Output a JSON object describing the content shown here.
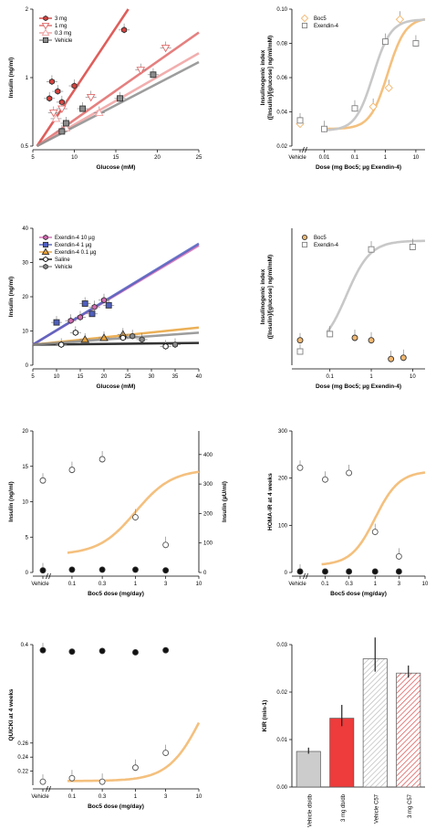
{
  "chart_data": [
    {
      "id": "p1",
      "type": "scatter",
      "xlabel": "Glucose (mM)",
      "ylabel": "Insulin (ng/ml)",
      "xlim": [
        5,
        25
      ],
      "ylim": [
        0.5,
        2
      ],
      "yscale": "log",
      "xticks": [
        "5",
        "10",
        "15",
        "20",
        "25"
      ],
      "yticks": [
        {
          "v": 0.5,
          "t": "0.5"
        },
        {
          "v": 1,
          "t": "1"
        },
        {
          "v": 2,
          "t": "2"
        }
      ],
      "legend": "top-left",
      "series": [
        {
          "name": "3 mg",
          "marker": "hexagon",
          "color": "#d9423e",
          "filled": true,
          "points": [
            {
              "x": 7,
              "y": 0.81
            },
            {
              "x": 7.3,
              "y": 0.96
            },
            {
              "x": 8,
              "y": 0.87
            },
            {
              "x": 8.5,
              "y": 0.78
            },
            {
              "x": 10,
              "y": 0.92
            },
            {
              "x": 16,
              "y": 1.62
            }
          ],
          "line": [
            [
              5.5,
              0.5
            ],
            [
              16.5,
              2
            ]
          ]
        },
        {
          "name": "1 mg",
          "marker": "triangle-down",
          "color": "#e06a6a",
          "filled": false,
          "points": [
            {
              "x": 7.5,
              "y": 0.7
            },
            {
              "x": 8.5,
              "y": 0.73
            },
            {
              "x": 12,
              "y": 0.82
            },
            {
              "x": 18,
              "y": 1.08
            },
            {
              "x": 21,
              "y": 1.35
            }
          ],
          "line": [
            [
              5.5,
              0.5
            ],
            [
              25,
              1.58
            ]
          ]
        },
        {
          "name": "0.3 mg",
          "marker": "triangle-up",
          "color": "#f0a0a0",
          "filled": false,
          "points": [
            {
              "x": 7.8,
              "y": 0.66
            },
            {
              "x": 9,
              "y": 0.6
            },
            {
              "x": 13,
              "y": 0.7
            }
          ],
          "line": [
            [
              5.5,
              0.5
            ],
            [
              25,
              1.28
            ]
          ]
        },
        {
          "name": "Vehicle",
          "marker": "square",
          "color": "#8c8c8c",
          "filled": true,
          "points": [
            {
              "x": 8.5,
              "y": 0.58
            },
            {
              "x": 9,
              "y": 0.63
            },
            {
              "x": 11,
              "y": 0.73
            },
            {
              "x": 15.5,
              "y": 0.81
            },
            {
              "x": 19.5,
              "y": 1.03
            }
          ],
          "line": [
            [
              5.5,
              0.5
            ],
            [
              25,
              1.17
            ]
          ]
        }
      ]
    },
    {
      "id": "p2",
      "type": "scatter",
      "xlabel": "Dose (mg Boc5; µg Exendin-4)",
      "ylabel": "Insulinogenic index ([Insulin]/[glucose] ng/ml/mM)",
      "xscale": "log",
      "xlim": [
        0.003,
        20
      ],
      "ylim": [
        0.02,
        0.1
      ],
      "xticks": [
        {
          "v": 0.01,
          "t": "0.01"
        },
        {
          "v": 0.1,
          "t": "0.1"
        },
        {
          "v": 1,
          "t": "1"
        },
        {
          "v": 10,
          "t": "10"
        }
      ],
      "yticks": [
        "0.02",
        "0.04",
        "0.06",
        "0.08",
        "0.10"
      ],
      "vehicle_label": "Vehicle",
      "legend": "top-left",
      "series": [
        {
          "name": "Boc5",
          "marker": "diamond",
          "color": "#f2b872",
          "filled": false,
          "vehicle": 0.033,
          "points": [
            {
              "x": 0.4,
              "y": 0.043
            },
            {
              "x": 1.3,
              "y": 0.054
            },
            {
              "x": 3,
              "y": 0.094
            }
          ],
          "curve": {
            "bottom": 0.03,
            "top": 0.095,
            "ec50": 1.2,
            "hill": 1.5
          }
        },
        {
          "name": "Exendin-4",
          "marker": "square",
          "color": "#808080",
          "filled": false,
          "vehicle": 0.035,
          "points": [
            {
              "x": 0.01,
              "y": 0.03
            },
            {
              "x": 0.1,
              "y": 0.042
            },
            {
              "x": 1,
              "y": 0.081
            },
            {
              "x": 10,
              "y": 0.08
            }
          ],
          "curve": {
            "bottom": 0.029,
            "top": 0.094,
            "ec50": 0.4,
            "hill": 1.5
          }
        }
      ]
    },
    {
      "id": "p3",
      "type": "scatter",
      "xlabel": "Glucose (mM)",
      "ylabel": "Insulin (ng/ml)",
      "xlim": [
        5,
        40
      ],
      "ylim": [
        0,
        40
      ],
      "xticks": [
        "5",
        "10",
        "15",
        "20",
        "25",
        "30",
        "35",
        "40"
      ],
      "yticks": [
        "0",
        "10",
        "20",
        "30",
        "40"
      ],
      "legend": "top-left",
      "series": [
        {
          "name": "Exendin-4 10 µg",
          "marker": "hexagon",
          "color": "#d36ab3",
          "filled": true,
          "points": [
            {
              "x": 13,
              "y": 13
            },
            {
              "x": 15,
              "y": 14
            },
            {
              "x": 18,
              "y": 17
            },
            {
              "x": 20,
              "y": 19
            }
          ],
          "line": [
            [
              5,
              6
            ],
            [
              40,
              35
            ]
          ]
        },
        {
          "name": "Exendin-4 1 µg",
          "marker": "square",
          "color": "#4f5fbf",
          "filled": true,
          "points": [
            {
              "x": 10,
              "y": 12.5
            },
            {
              "x": 16,
              "y": 18
            },
            {
              "x": 17.5,
              "y": 15
            },
            {
              "x": 21,
              "y": 17.5
            }
          ],
          "line": [
            [
              5,
              6
            ],
            [
              40,
              35.5
            ]
          ]
        },
        {
          "name": "Exendin-4 0.1 µg",
          "marker": "triangle-up",
          "color": "#e8a23a",
          "filled": true,
          "points": [
            {
              "x": 16,
              "y": 7.5
            },
            {
              "x": 20,
              "y": 8
            },
            {
              "x": 24,
              "y": 9
            }
          ],
          "line": [
            [
              5,
              6
            ],
            [
              40,
              11
            ]
          ]
        },
        {
          "name": "Saline",
          "marker": "hexagon",
          "color": "#111111",
          "filled": false,
          "points": [
            {
              "x": 11,
              "y": 6
            },
            {
              "x": 14,
              "y": 9.5
            },
            {
              "x": 24,
              "y": 8
            },
            {
              "x": 33,
              "y": 5.5
            }
          ],
          "line": [
            [
              5,
              6
            ],
            [
              40,
              6.5
            ]
          ]
        },
        {
          "name": "Vehicle",
          "marker": "hexagon",
          "color": "#8c8c8c",
          "filled": true,
          "points": [
            {
              "x": 26,
              "y": 8.5
            },
            {
              "x": 28,
              "y": 7.5
            },
            {
              "x": 35,
              "y": 6
            }
          ],
          "line": [
            [
              5,
              6
            ],
            [
              40,
              9.5
            ]
          ]
        }
      ]
    },
    {
      "id": "p4",
      "type": "scatter",
      "xlabel": "Dose (mg Boc5; µg Exendin-4)",
      "ylabel": "Insulinogenic index ([Insulin]/[glucose] ng/ml/mM)",
      "xscale": "log",
      "xlim": [
        0.03,
        20
      ],
      "ylim": [
        -0.1,
        1.0
      ],
      "xticks": [
        {
          "v": 0.1,
          "t": "0.1"
        },
        {
          "v": 1,
          "t": "1"
        },
        {
          "v": 10,
          "t": "10"
        }
      ],
      "legend": "top-left",
      "series": [
        {
          "name": "Boc5",
          "marker": "circle",
          "color": "#f2b872",
          "filled": true,
          "vehicle": 0.1,
          "points": [
            {
              "x": 0.4,
              "y": 0.12
            },
            {
              "x": 1,
              "y": 0.1
            },
            {
              "x": 3,
              "y": -0.05
            },
            {
              "x": 6,
              "y": -0.04
            }
          ]
        },
        {
          "name": "Exendin-4",
          "marker": "square",
          "color": "#808080",
          "filled": false,
          "vehicle": 0.01,
          "points": [
            {
              "x": 0.1,
              "y": 0.15
            },
            {
              "x": 1,
              "y": 0.83
            },
            {
              "x": 10,
              "y": 0.85
            }
          ],
          "curve": {
            "bottom": 0.02,
            "top": 0.9,
            "ec50": 0.25,
            "hill": 1.5
          }
        }
      ]
    },
    {
      "id": "p5",
      "type": "scatter",
      "xlabel": "Boc5 dose (mg/day)",
      "ylabel": "Insulin (ng/ml)",
      "y2label": "Insulin (µU/ml)",
      "xscale": "log",
      "xlim": [
        0.05,
        10
      ],
      "ylim": [
        0,
        20
      ],
      "y2lim": [
        0,
        480
      ],
      "xticks": [
        {
          "v": 0.1,
          "t": "0.1"
        },
        {
          "v": 0.3,
          "t": "0.3"
        },
        {
          "v": 1,
          "t": "1"
        },
        {
          "v": 3,
          "t": "3"
        },
        {
          "v": 10,
          "t": "10"
        }
      ],
      "yticks": [
        "0",
        "5",
        "10",
        "15",
        "20"
      ],
      "y2ticks": [
        "0",
        "100",
        "200",
        "300",
        "400"
      ],
      "vehicle_label": "Vehicle",
      "series": [
        {
          "marker": "circle",
          "color": "#555555",
          "filled": false,
          "vehicle": 13,
          "points": [
            {
              "x": 0.1,
              "y": 14.5
            },
            {
              "x": 0.3,
              "y": 16
            },
            {
              "x": 1,
              "y": 7.8
            },
            {
              "x": 3,
              "y": 3.9
            }
          ],
          "curve": {
            "bottom": 2.5,
            "top": 14.6,
            "ec50": 1,
            "hill": 1.5
          }
        },
        {
          "marker": "circle",
          "color": "#111111",
          "filled": true,
          "vehicle": 0.3,
          "points": [
            {
              "x": 0.1,
              "y": 0.4
            },
            {
              "x": 0.3,
              "y": 0.4
            },
            {
              "x": 1,
              "y": 0.4
            },
            {
              "x": 3,
              "y": 0.3
            }
          ]
        }
      ]
    },
    {
      "id": "p6",
      "type": "scatter",
      "xlabel": "Boc5 dose (mg/day)",
      "ylabel": "HOMA-IR at 4 weeks",
      "xscale": "log",
      "xlim": [
        0.05,
        10
      ],
      "ylim": [
        0,
        300
      ],
      "xticks": [
        {
          "v": 0.1,
          "t": "0.1"
        },
        {
          "v": 0.3,
          "t": "0.3"
        },
        {
          "v": 1,
          "t": "1"
        },
        {
          "v": 3,
          "t": "3"
        },
        {
          "v": 10,
          "t": "10"
        }
      ],
      "yticks": [
        "0",
        "100",
        "200",
        "300"
      ],
      "vehicle_label": "Vehicle",
      "series": [
        {
          "marker": "circle",
          "color": "#555555",
          "filled": false,
          "vehicle": 222,
          "points": [
            {
              "x": 0.1,
              "y": 197
            },
            {
              "x": 0.3,
              "y": 211
            },
            {
              "x": 1,
              "y": 86
            },
            {
              "x": 3,
              "y": 34
            }
          ],
          "curve": {
            "bottom": 15,
            "top": 215,
            "ec50": 1,
            "hill": 1.8
          }
        },
        {
          "marker": "circle",
          "color": "#111111",
          "filled": true,
          "vehicle": 2,
          "points": [
            {
              "x": 0.1,
              "y": 2
            },
            {
              "x": 0.3,
              "y": 2
            },
            {
              "x": 1,
              "y": 2
            },
            {
              "x": 3,
              "y": 2
            }
          ]
        }
      ]
    },
    {
      "id": "p7",
      "type": "scatter",
      "xlabel": "Boc5 dose (mg/day)",
      "ylabel": "QUICKI at 4 weeks",
      "xscale": "log",
      "xlim": [
        0.05,
        10
      ],
      "ylim": [
        0.2,
        0.4
      ],
      "xticks": [
        {
          "v": 0.1,
          "t": "0.1"
        },
        {
          "v": 0.3,
          "t": "0.3"
        },
        {
          "v": 1,
          "t": "1"
        },
        {
          "v": 3,
          "t": "3"
        },
        {
          "v": 10,
          "t": "10"
        }
      ],
      "yticks": [
        "0.22",
        "0.24",
        "0.26",
        "0.4"
      ],
      "vehicle_label": "Vehicle",
      "series": [
        {
          "marker": "circle",
          "color": "#555555",
          "filled": false,
          "vehicle": 0.205,
          "points": [
            {
              "x": 0.1,
              "y": 0.21
            },
            {
              "x": 0.3,
              "y": 0.205
            },
            {
              "x": 1,
              "y": 0.225
            },
            {
              "x": 3,
              "y": 0.246
            }
          ],
          "curve": {
            "bottom": 0.206,
            "top": 0.4,
            "ec50": 12,
            "hill": 1.6
          }
        },
        {
          "marker": "circle",
          "color": "#111111",
          "filled": true,
          "vehicle": 0.392,
          "points": [
            {
              "x": 0.1,
              "y": 0.39
            },
            {
              "x": 0.3,
              "y": 0.391
            },
            {
              "x": 1,
              "y": 0.389
            },
            {
              "x": 3,
              "y": 0.392
            }
          ]
        }
      ]
    },
    {
      "id": "p8",
      "type": "bar",
      "ylabel": "KIR (min-1)",
      "ylim": [
        0,
        0.03
      ],
      "yticks": [
        "0.00",
        "0.01",
        "0.02",
        "0.03"
      ],
      "categories": [
        "Vehicle db/db",
        "3 mg db/db",
        "Vehicle C57",
        "3 mg C57"
      ],
      "values": [
        0.0075,
        0.0145,
        0.027,
        0.024
      ],
      "errors": [
        0.0008,
        0.0028,
        0.0045,
        0.0016
      ],
      "colors": [
        "#cccccc",
        "#ee3b3b",
        "#bbbbbb",
        "#d94a4a"
      ],
      "hatched": [
        false,
        false,
        true,
        true
      ]
    }
  ]
}
